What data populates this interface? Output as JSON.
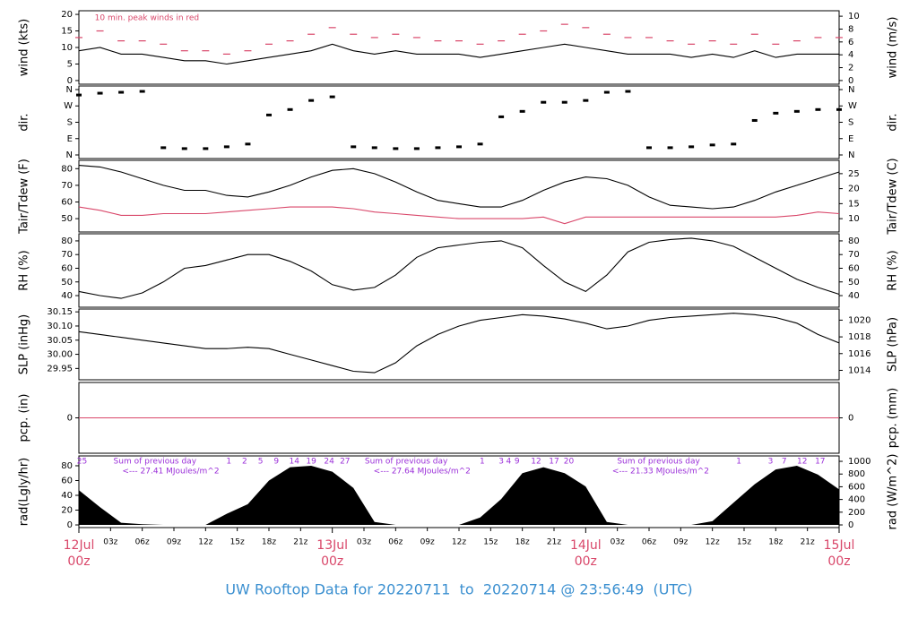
{
  "chart_data": [
    {
      "type": "line",
      "ylabel": "wind (kts)",
      "y2label": "wind (m/s)",
      "xlim": [
        0,
        72
      ],
      "ylim": [
        -1.1,
        21.1
      ],
      "yticks": [
        0,
        5,
        10,
        15,
        20
      ],
      "y2lim": [
        -0.57,
        10.85
      ],
      "y2ticks": [
        0,
        2,
        4,
        6,
        8,
        10
      ],
      "annotation": {
        "x": 1.5,
        "text": "10 min. peak winds in red",
        "color": "#d9476a"
      },
      "x": [
        0,
        2,
        4,
        6,
        8,
        10,
        12,
        14,
        16,
        18,
        20,
        22,
        24,
        26,
        28,
        30,
        32,
        34,
        36,
        38,
        40,
        42,
        44,
        46,
        48,
        50,
        52,
        54,
        56,
        58,
        60,
        62,
        64,
        66,
        68,
        70,
        72
      ],
      "series": [
        {
          "color": "#000000",
          "marker": "line",
          "values": [
            9,
            10,
            8,
            8,
            7,
            6,
            6,
            5,
            6,
            7,
            8,
            9,
            11,
            9,
            8,
            9,
            8,
            8,
            8,
            7,
            8,
            9,
            10,
            11,
            10,
            9,
            8,
            8,
            8,
            7,
            8,
            7,
            9,
            7,
            8,
            8,
            8
          ]
        },
        {
          "color": "#d9476a",
          "marker": "dash",
          "values": [
            13,
            15,
            12,
            12,
            11,
            9,
            9,
            8,
            9,
            11,
            12,
            14,
            16,
            14,
            13,
            14,
            13,
            12,
            12,
            11,
            12,
            14,
            15,
            17,
            16,
            14,
            13,
            13,
            12,
            11,
            12,
            11,
            14,
            11,
            12,
            13,
            13
          ]
        }
      ]
    },
    {
      "type": "scatter",
      "ylabel": "dir.",
      "y2label": "dir.",
      "xlim": [
        0,
        72
      ],
      "ylim": [
        -19.7,
        379.7
      ],
      "yticks": [
        {
          "value": 360,
          "label": "N"
        },
        {
          "value": 270,
          "label": "W"
        },
        {
          "value": 180,
          "label": "S"
        },
        {
          "value": 90,
          "label": "E"
        },
        {
          "value": 0,
          "label": "N"
        }
      ],
      "y2lim": [
        -19.7,
        379.7
      ],
      "y2ticks": [
        {
          "value": 360,
          "label": "N"
        },
        {
          "value": 270,
          "label": "W"
        },
        {
          "value": 180,
          "label": "S"
        },
        {
          "value": 90,
          "label": "E"
        },
        {
          "value": 0,
          "label": "N"
        }
      ],
      "x": [
        0,
        2,
        4,
        6,
        8,
        10,
        12,
        14,
        16,
        18,
        20,
        22,
        24,
        26,
        28,
        30,
        32,
        34,
        36,
        38,
        40,
        42,
        44,
        46,
        48,
        50,
        52,
        54,
        56,
        58,
        60,
        62,
        64,
        66,
        68,
        70,
        72
      ],
      "series": [
        {
          "color": "#000000",
          "values": [
            330,
            340,
            345,
            350,
            40,
            35,
            35,
            45,
            60,
            220,
            250,
            300,
            320,
            45,
            40,
            35,
            35,
            40,
            45,
            60,
            210,
            240,
            290,
            290,
            300,
            345,
            350,
            40,
            40,
            45,
            55,
            60,
            190,
            230,
            240,
            250,
            250
          ]
        }
      ]
    },
    {
      "type": "line",
      "ylabel": "Tair/Tdew (F)",
      "y2label": "Tair/Tdew (C)",
      "xlim": [
        0,
        72
      ],
      "ylim": [
        42,
        85
      ],
      "yticks": [
        50,
        60,
        70,
        80
      ],
      "y2lim": [
        5.56,
        29.44
      ],
      "y2ticks": [
        10,
        15,
        20,
        25
      ],
      "x": [
        0,
        2,
        4,
        6,
        8,
        10,
        12,
        14,
        16,
        18,
        20,
        22,
        24,
        26,
        28,
        30,
        32,
        34,
        36,
        38,
        40,
        42,
        44,
        46,
        48,
        50,
        52,
        54,
        56,
        58,
        60,
        62,
        64,
        66,
        68,
        70,
        72
      ],
      "series": [
        {
          "color": "#000000",
          "marker": "line",
          "values": [
            82,
            81,
            78,
            74,
            70,
            67,
            67,
            64,
            63,
            66,
            70,
            75,
            79,
            80,
            77,
            72,
            66,
            61,
            59,
            57,
            57,
            61,
            67,
            72,
            75,
            74,
            70,
            63,
            58,
            57,
            56,
            57,
            61,
            66,
            70,
            74,
            78
          ]
        },
        {
          "color": "#d9476a",
          "marker": "line",
          "values": [
            57,
            55,
            52,
            52,
            53,
            53,
            53,
            54,
            55,
            56,
            57,
            57,
            57,
            56,
            54,
            53,
            52,
            51,
            50,
            50,
            50,
            50,
            51,
            47,
            51,
            51,
            51,
            51,
            51,
            51,
            51,
            51,
            51,
            51,
            52,
            54,
            53
          ]
        }
      ]
    },
    {
      "type": "line",
      "ylabel": "RH (%)",
      "y2label": "RH (%)",
      "xlim": [
        0,
        72
      ],
      "ylim": [
        31.5,
        85.2
      ],
      "yticks": [
        40,
        50,
        60,
        70,
        80
      ],
      "y2lim": [
        31.5,
        85.2
      ],
      "y2ticks": [
        40,
        50,
        60,
        70,
        80
      ],
      "x": [
        0,
        2,
        4,
        6,
        8,
        10,
        12,
        14,
        16,
        18,
        20,
        22,
        24,
        26,
        28,
        30,
        32,
        34,
        36,
        38,
        40,
        42,
        44,
        46,
        48,
        50,
        52,
        54,
        56,
        58,
        60,
        62,
        64,
        66,
        68,
        70,
        72
      ],
      "series": [
        {
          "color": "#000000",
          "marker": "line",
          "values": [
            43,
            40,
            38,
            42,
            50,
            60,
            62,
            66,
            70,
            70,
            65,
            58,
            48,
            44,
            46,
            55,
            68,
            75,
            77,
            79,
            80,
            75,
            62,
            50,
            43,
            55,
            72,
            79,
            81,
            82,
            80,
            76,
            68,
            60,
            52,
            46,
            41
          ]
        }
      ]
    },
    {
      "type": "line",
      "ylabel": "SLP (inHg)",
      "y2label": "SLP (hPa)",
      "xlim": [
        0,
        72
      ],
      "ylim": [
        29.91,
        30.16
      ],
      "yticks": [
        29.95,
        {
          "value": 30.0,
          "label": "30.00"
        },
        30.05,
        {
          "value": 30.1,
          "label": "30.10"
        },
        30.15
      ],
      "y2lim": [
        1012.87,
        1021.33
      ],
      "y2ticks": [
        1014,
        1016,
        1018,
        1020
      ],
      "x": [
        0,
        2,
        4,
        6,
        8,
        10,
        12,
        14,
        16,
        18,
        20,
        22,
        24,
        26,
        28,
        30,
        32,
        34,
        36,
        38,
        40,
        42,
        44,
        46,
        48,
        50,
        52,
        54,
        56,
        58,
        60,
        62,
        64,
        66,
        68,
        70,
        72
      ],
      "series": [
        {
          "color": "#000000",
          "marker": "line",
          "values": [
            30.08,
            30.07,
            30.06,
            30.05,
            30.04,
            30.03,
            30.02,
            30.02,
            30.025,
            30.02,
            30.0,
            29.98,
            29.96,
            29.94,
            29.935,
            29.97,
            30.03,
            30.07,
            30.1,
            30.12,
            30.13,
            30.14,
            30.135,
            30.125,
            30.11,
            30.09,
            30.1,
            30.12,
            30.13,
            30.135,
            30.14,
            30.145,
            30.14,
            30.13,
            30.11,
            30.07,
            30.04
          ]
        }
      ]
    },
    {
      "type": "line",
      "ylabel": "pcp. (in)",
      "y2label": "pcp. (mm)",
      "xlim": [
        0,
        72
      ],
      "ylim": [
        -1,
        1
      ],
      "yticks": [
        0
      ],
      "y2lim": [
        -1,
        1
      ],
      "y2ticks": [
        0
      ],
      "x": [
        0,
        72
      ],
      "series": [
        {
          "color": "#d9476a",
          "marker": "line",
          "values": [
            0,
            0
          ]
        }
      ]
    },
    {
      "type": "area",
      "ylabel": "rad(Lgly/hr)",
      "y2label": "rad (W/m^2)",
      "xlim": [
        0,
        72
      ],
      "ylim": [
        -3.6,
        93.3
      ],
      "yticks": [
        0,
        20,
        40,
        60,
        80
      ],
      "y2lim": [
        -42,
        1085
      ],
      "y2ticks": [
        0,
        200,
        400,
        600,
        800,
        1000
      ],
      "x": [
        0,
        2,
        4,
        6,
        8,
        10,
        12,
        14,
        16,
        18,
        20,
        22,
        24,
        26,
        28,
        30,
        32,
        34,
        36,
        38,
        40,
        42,
        44,
        46,
        48,
        50,
        52,
        54,
        56,
        58,
        60,
        62,
        64,
        66,
        68,
        70,
        72
      ],
      "series": [
        {
          "color": "#000000",
          "values": [
            47,
            24,
            3,
            1,
            0,
            0,
            0,
            15,
            28,
            60,
            78,
            80,
            72,
            50,
            4,
            0,
            0,
            0,
            0,
            10,
            35,
            70,
            78,
            70,
            52,
            4,
            0,
            0,
            0,
            0,
            5,
            30,
            55,
            75,
            80,
            68,
            48
          ]
        }
      ],
      "annotations": [
        {
          "x": 7.2,
          "text": "Sum of previous day"
        },
        {
          "x": 8.7,
          "text": "<--- 27.41 MJoules/m^2"
        },
        {
          "x": 31.0,
          "text": "Sum of previous day"
        },
        {
          "x": 32.5,
          "text": "<--- 27.64 MJoules/m^2"
        },
        {
          "x": 54.9,
          "text": "Sum of previous day"
        },
        {
          "x": 55.1,
          "text": "<--- 21.33 MJoules/m^2"
        }
      ],
      "hour_labels": [
        {
          "x": 0.3,
          "label": "25"
        },
        {
          "x": 14.2,
          "label": "1"
        },
        {
          "x": 15.7,
          "label": "2"
        },
        {
          "x": 17.2,
          "label": "5"
        },
        {
          "x": 18.7,
          "label": "9"
        },
        {
          "x": 20.4,
          "label": "14"
        },
        {
          "x": 22.0,
          "label": "19"
        },
        {
          "x": 23.7,
          "label": "24"
        },
        {
          "x": 25.2,
          "label": "27"
        },
        {
          "x": 38.2,
          "label": "1"
        },
        {
          "x": 40.0,
          "label": "3"
        },
        {
          "x": 40.7,
          "label": "4"
        },
        {
          "x": 41.5,
          "label": "9"
        },
        {
          "x": 43.3,
          "label": "12"
        },
        {
          "x": 45.0,
          "label": "17"
        },
        {
          "x": 46.4,
          "label": "20"
        },
        {
          "x": 62.5,
          "label": "1"
        },
        {
          "x": 65.5,
          "label": "3"
        },
        {
          "x": 66.8,
          "label": "7"
        },
        {
          "x": 68.5,
          "label": "12"
        },
        {
          "x": 70.2,
          "label": "17"
        }
      ],
      "xticks": [
        {
          "value": 3,
          "label": "03z"
        },
        {
          "value": 6,
          "label": "06z"
        },
        {
          "value": 9,
          "label": "09z"
        },
        {
          "value": 12,
          "label": "12z"
        },
        {
          "value": 15,
          "label": "15z"
        },
        {
          "value": 18,
          "label": "18z"
        },
        {
          "value": 21,
          "label": "21z"
        },
        {
          "value": 27,
          "label": "03z"
        },
        {
          "value": 30,
          "label": "06z"
        },
        {
          "value": 33,
          "label": "09z"
        },
        {
          "value": 36,
          "label": "12z"
        },
        {
          "value": 39,
          "label": "15z"
        },
        {
          "value": 42,
          "label": "18z"
        },
        {
          "value": 45,
          "label": "21z"
        },
        {
          "value": 51,
          "label": "03z"
        },
        {
          "value": 54,
          "label": "06z"
        },
        {
          "value": 57,
          "label": "09z"
        },
        {
          "value": 60,
          "label": "12z"
        },
        {
          "value": 63,
          "label": "15z"
        },
        {
          "value": 66,
          "label": "18z"
        },
        {
          "value": 69,
          "label": "21z"
        }
      ],
      "date_ticks": [
        {
          "value": 0,
          "label": "12Jul",
          "sublabel": "00z"
        },
        {
          "value": 24,
          "label": "13Jul",
          "sublabel": "00z"
        },
        {
          "value": 48,
          "label": "14Jul",
          "sublabel": "00z"
        },
        {
          "value": 72,
          "label": "15Jul",
          "sublabel": "00z"
        }
      ],
      "footer": "UW Rooftop Data for 20220711  to  20220714 @ 23:56:49  (UTC)"
    }
  ]
}
